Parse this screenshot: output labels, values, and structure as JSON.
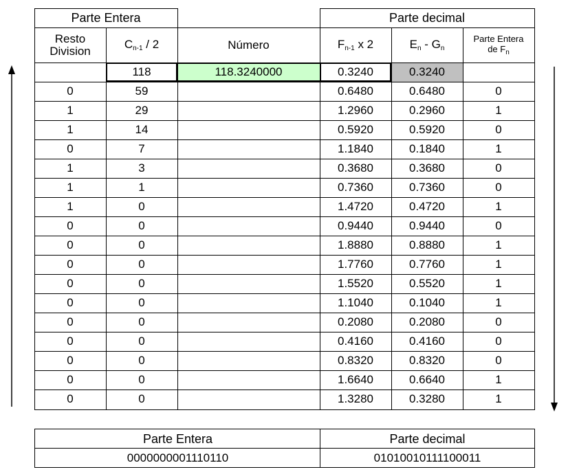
{
  "main_table": {
    "group_headers": {
      "entera": "Parte Entera",
      "decimal": "Parte decimal"
    },
    "columns": {
      "resto": "Resto Division",
      "cn_base": "C",
      "cn_sub": "n-1",
      "cn_rest": "/ 2",
      "numero": "Número",
      "fn_base": "F",
      "fn_sub": "n-1",
      "fn_rest": "x 2",
      "eg_e": "E",
      "eg_sub1": "n",
      "eg_mid": "- G",
      "eg_sub2": "n",
      "pe_line1": "Parte Entera",
      "pe_line2": "de F",
      "pe_sub": "n"
    },
    "first_row": {
      "c": "118",
      "numero": "118.3240000",
      "f": "0.3240",
      "eg": "0.3240"
    },
    "rows": [
      [
        "0",
        "59",
        "",
        "0.6480",
        "0.6480",
        "0"
      ],
      [
        "1",
        "29",
        "",
        "1.2960",
        "0.2960",
        "1"
      ],
      [
        "1",
        "14",
        "",
        "0.5920",
        "0.5920",
        "0"
      ],
      [
        "0",
        "7",
        "",
        "1.1840",
        "0.1840",
        "1"
      ],
      [
        "1",
        "3",
        "",
        "0.3680",
        "0.3680",
        "0"
      ],
      [
        "1",
        "1",
        "",
        "0.7360",
        "0.7360",
        "0"
      ],
      [
        "1",
        "0",
        "",
        "1.4720",
        "0.4720",
        "1"
      ],
      [
        "0",
        "0",
        "",
        "0.9440",
        "0.9440",
        "0"
      ],
      [
        "0",
        "0",
        "",
        "1.8880",
        "0.8880",
        "1"
      ],
      [
        "0",
        "0",
        "",
        "1.7760",
        "0.7760",
        "1"
      ],
      [
        "0",
        "0",
        "",
        "1.5520",
        "0.5520",
        "1"
      ],
      [
        "0",
        "0",
        "",
        "1.1040",
        "0.1040",
        "1"
      ],
      [
        "0",
        "0",
        "",
        "0.2080",
        "0.2080",
        "0"
      ],
      [
        "0",
        "0",
        "",
        "0.4160",
        "0.4160",
        "0"
      ],
      [
        "0",
        "0",
        "",
        "0.8320",
        "0.8320",
        "0"
      ],
      [
        "0",
        "0",
        "",
        "1.6640",
        "0.6640",
        "1"
      ],
      [
        "0",
        "0",
        "",
        "1.3280",
        "0.3280",
        "1"
      ]
    ],
    "colors": {
      "numero_bg": "#ccffcc",
      "eg_bg": "#c0c0c0"
    }
  },
  "result_table": {
    "headers": [
      "Parte Entera",
      "Parte decimal"
    ],
    "values": [
      "0000000001110110",
      "01010010111100011"
    ]
  }
}
